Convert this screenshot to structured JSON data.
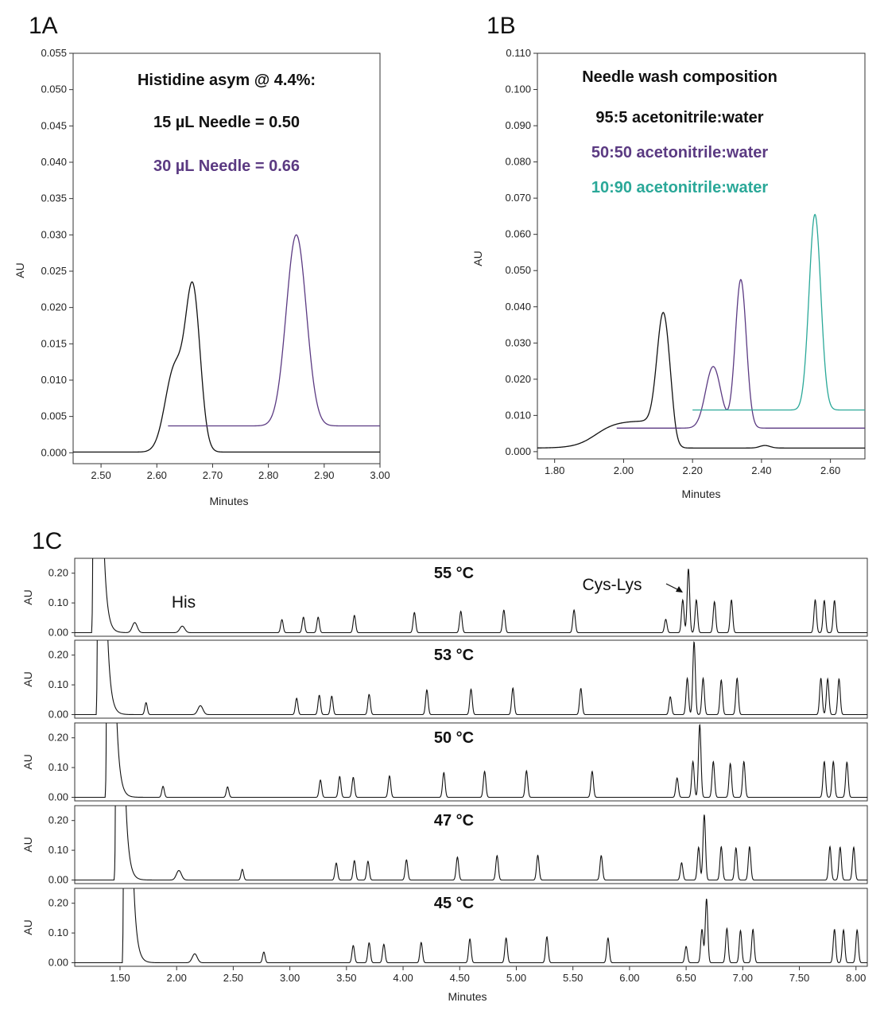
{
  "chart_data": [
    {
      "panel": "1A",
      "type": "line",
      "xlabel": "Minutes",
      "ylabel": "AU",
      "xlim": [
        2.45,
        3.0
      ],
      "ylim": [
        -0.0015,
        0.055
      ],
      "xticks": [
        "2.50",
        "2.60",
        "2.70",
        "2.80",
        "2.90",
        "3.00"
      ],
      "yticks": [
        "0.000",
        "0.005",
        "0.010",
        "0.015",
        "0.020",
        "0.025",
        "0.030",
        "0.035",
        "0.040",
        "0.045",
        "0.050",
        "0.055"
      ],
      "annotations": [
        {
          "text": "Histidine asym @ 4.4%:",
          "color": "#111111"
        },
        {
          "text": "15 µL Needle = 0.50",
          "color": "#111111"
        },
        {
          "text": "30 µL Needle = 0.66",
          "color": "#5b3a82"
        }
      ],
      "series": [
        {
          "name": "15 µL Needle",
          "color": "#111111",
          "x_range": [
            2.45,
            3.0
          ],
          "baseline": 0.0001,
          "peaks": [
            {
              "center": 2.632,
              "height": 0.0115,
              "width": 0.017
            },
            {
              "center": 2.665,
              "height": 0.0215,
              "width": 0.013
            }
          ]
        },
        {
          "name": "30 µL Needle",
          "color": "#5b3a82",
          "x_range": [
            2.62,
            3.0
          ],
          "baseline": 0.0037,
          "peaks": [
            {
              "center": 2.85,
              "height": 0.0263,
              "width": 0.018
            }
          ]
        }
      ]
    },
    {
      "panel": "1B",
      "type": "line",
      "xlabel": "Minutes",
      "ylabel": "AU",
      "xlim": [
        1.75,
        2.7
      ],
      "ylim": [
        -0.002,
        0.11
      ],
      "xticks": [
        "1.80",
        "2.00",
        "2.20",
        "2.40",
        "2.60"
      ],
      "yticks": [
        "0.000",
        "0.010",
        "0.020",
        "0.030",
        "0.040",
        "0.050",
        "0.060",
        "0.070",
        "0.080",
        "0.090",
        "0.100",
        "0.110"
      ],
      "annotations": [
        {
          "text": "Needle wash composition",
          "color": "#111111"
        },
        {
          "text": "95:5 acetonitrile:water",
          "color": "#111111"
        },
        {
          "text": "50:50 acetonitrile:water",
          "color": "#5b3a82"
        },
        {
          "text": "10:90 acetonitrile:water",
          "color": "#2aa898"
        }
      ],
      "series": [
        {
          "name": "95:5 acetonitrile:water",
          "color": "#111111",
          "x_range": [
            1.75,
            2.7
          ],
          "baseline": 0.001,
          "peaks": [
            {
              "center": 2.115,
              "height": 0.03,
              "width": 0.018
            }
          ]
        },
        {
          "name": "50:50 acetonitrile:water",
          "color": "#5b3a82",
          "x_range": [
            1.98,
            2.7
          ],
          "baseline": 0.0065,
          "peaks": [
            {
              "center": 2.26,
              "height": 0.017,
              "width": 0.022
            },
            {
              "center": 2.34,
              "height": 0.041,
              "width": 0.016
            }
          ]
        },
        {
          "name": "10:90 acetonitrile:water",
          "color": "#2aa898",
          "x_range": [
            2.2,
            2.7
          ],
          "baseline": 0.0115,
          "peaks": [
            {
              "center": 2.555,
              "height": 0.054,
              "width": 0.017
            }
          ]
        }
      ]
    },
    {
      "panel": "1C",
      "type": "line",
      "xlabel": "Minutes",
      "ylabel": "AU",
      "xlim": [
        1.1,
        8.1
      ],
      "ylim": [
        -0.012,
        0.25
      ],
      "xticks": [
        "1.50",
        "2.00",
        "2.50",
        "3.00",
        "3.50",
        "4.00",
        "4.50",
        "5.00",
        "5.50",
        "6.00",
        "6.50",
        "7.00",
        "7.50",
        "8.00"
      ],
      "yticks": [
        "0.00",
        "0.10",
        "0.20"
      ],
      "labels": {
        "his": "His",
        "cys_lys": "Cys-Lys"
      },
      "traces": [
        {
          "temperature": "55 °C",
          "void": [
            1.26,
            1.35
          ],
          "peaks": [
            [
              1.63,
              0.034
            ],
            [
              2.05,
              0.022
            ],
            [
              2.93,
              0.044
            ],
            [
              3.12,
              0.052
            ],
            [
              3.25,
              0.052
            ],
            [
              3.57,
              0.058
            ],
            [
              4.1,
              0.068
            ],
            [
              4.51,
              0.072
            ],
            [
              4.89,
              0.076
            ],
            [
              5.51,
              0.076
            ],
            [
              6.32,
              0.045
            ],
            [
              6.47,
              0.11
            ],
            [
              6.52,
              0.215
            ],
            [
              6.59,
              0.11
            ],
            [
              6.75,
              0.104
            ],
            [
              6.9,
              0.11
            ],
            [
              7.64,
              0.11
            ],
            [
              7.72,
              0.108
            ],
            [
              7.81,
              0.108
            ]
          ]
        },
        {
          "temperature": "53 °C",
          "void": [
            1.3,
            1.38
          ],
          "peaks": [
            [
              1.73,
              0.04
            ],
            [
              2.21,
              0.03
            ],
            [
              3.06,
              0.055
            ],
            [
              3.26,
              0.065
            ],
            [
              3.37,
              0.062
            ],
            [
              3.7,
              0.068
            ],
            [
              4.21,
              0.083
            ],
            [
              4.6,
              0.085
            ],
            [
              4.97,
              0.089
            ],
            [
              5.57,
              0.088
            ],
            [
              6.36,
              0.06
            ],
            [
              6.51,
              0.122
            ],
            [
              6.57,
              0.245
            ],
            [
              6.65,
              0.122
            ],
            [
              6.81,
              0.116
            ],
            [
              6.95,
              0.122
            ],
            [
              7.69,
              0.122
            ],
            [
              7.75,
              0.12
            ],
            [
              7.85,
              0.12
            ]
          ]
        },
        {
          "temperature": "50 °C",
          "void": [
            1.38,
            1.46
          ],
          "peaks": [
            [
              1.88,
              0.037
            ],
            [
              2.45,
              0.035
            ],
            [
              3.27,
              0.058
            ],
            [
              3.44,
              0.07
            ],
            [
              3.56,
              0.067
            ],
            [
              3.88,
              0.072
            ],
            [
              4.36,
              0.083
            ],
            [
              4.72,
              0.087
            ],
            [
              5.09,
              0.089
            ],
            [
              5.67,
              0.087
            ],
            [
              6.42,
              0.065
            ],
            [
              6.56,
              0.12
            ],
            [
              6.62,
              0.245
            ],
            [
              6.74,
              0.12
            ],
            [
              6.89,
              0.113
            ],
            [
              7.01,
              0.12
            ],
            [
              7.72,
              0.12
            ],
            [
              7.8,
              0.12
            ],
            [
              7.92,
              0.118
            ]
          ]
        },
        {
          "temperature": "47 °C",
          "void": [
            1.46,
            1.54
          ],
          "peaks": [
            [
              2.02,
              0.032
            ],
            [
              2.58,
              0.036
            ],
            [
              3.41,
              0.057
            ],
            [
              3.57,
              0.065
            ],
            [
              3.69,
              0.063
            ],
            [
              4.03,
              0.068
            ],
            [
              4.48,
              0.077
            ],
            [
              4.83,
              0.082
            ],
            [
              5.19,
              0.083
            ],
            [
              5.75,
              0.082
            ],
            [
              6.46,
              0.058
            ],
            [
              6.61,
              0.11
            ],
            [
              6.66,
              0.22
            ],
            [
              6.81,
              0.112
            ],
            [
              6.94,
              0.108
            ],
            [
              7.06,
              0.112
            ],
            [
              7.77,
              0.112
            ],
            [
              7.86,
              0.11
            ],
            [
              7.98,
              0.11
            ]
          ]
        },
        {
          "temperature": "45 °C",
          "void": [
            1.53,
            1.61
          ],
          "peaks": [
            [
              2.16,
              0.03
            ],
            [
              2.77,
              0.036
            ],
            [
              3.56,
              0.058
            ],
            [
              3.7,
              0.067
            ],
            [
              3.83,
              0.062
            ],
            [
              4.16,
              0.068
            ],
            [
              4.59,
              0.08
            ],
            [
              4.91,
              0.083
            ],
            [
              5.27,
              0.087
            ],
            [
              5.81,
              0.083
            ],
            [
              6.5,
              0.055
            ],
            [
              6.64,
              0.112
            ],
            [
              6.68,
              0.215
            ],
            [
              6.86,
              0.115
            ],
            [
              6.98,
              0.108
            ],
            [
              7.09,
              0.112
            ],
            [
              7.81,
              0.112
            ],
            [
              7.89,
              0.11
            ],
            [
              8.01,
              0.11
            ]
          ]
        }
      ]
    }
  ]
}
